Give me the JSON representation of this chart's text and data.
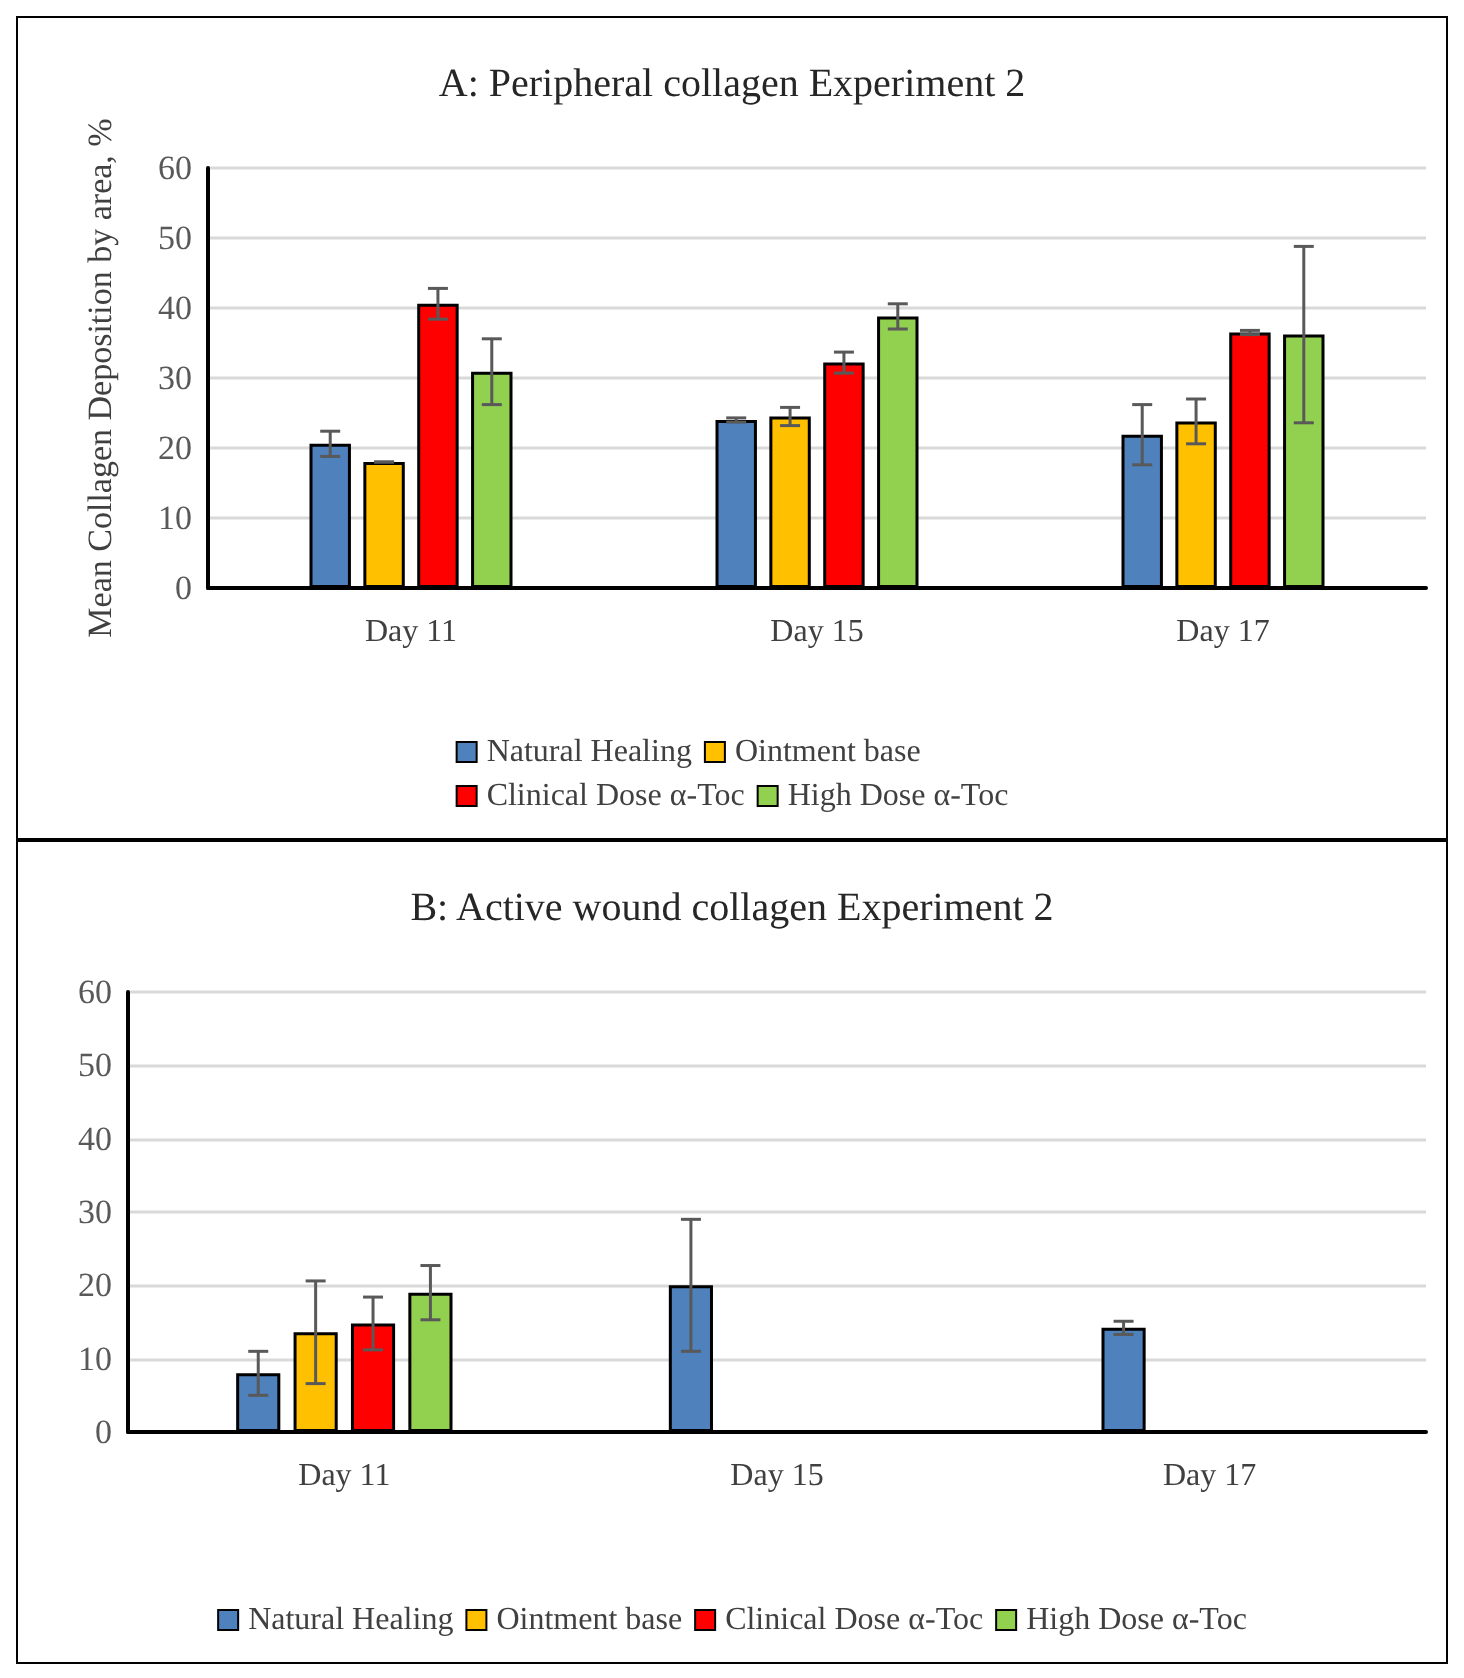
{
  "chart_data": [
    {
      "type": "bar",
      "title": "A: Peripheral collagen Experiment 2",
      "ylabel": "Mean Collagen Deposition by area, %",
      "categories": [
        "Day 11",
        "Day 15",
        "Day 17"
      ],
      "ylim": [
        0,
        60
      ],
      "yticks": [
        0,
        10,
        20,
        30,
        40,
        50,
        60
      ],
      "grid": "y",
      "legend": "bottom",
      "series": [
        {
          "name": "Natural Healing",
          "color": "#4f81bd",
          "values": [
            20.6,
            24,
            21.9
          ],
          "errors": [
            1.8,
            0.3,
            4.3
          ]
        },
        {
          "name": "Ointment base",
          "color": "#ffc000",
          "values": [
            18,
            24.5,
            23.8
          ],
          "errors": [
            0,
            1.3,
            3.2
          ]
        },
        {
          "name": "Clinical Dose α-Toc",
          "color": "#ff0000",
          "values": [
            40.6,
            32.2,
            36.5
          ],
          "errors": [
            2.2,
            1.5,
            0.3
          ]
        },
        {
          "name": "High Dose α-Toc",
          "color": "#92d050",
          "values": [
            30.9,
            38.8,
            36.2
          ],
          "errors": [
            4.7,
            1.8,
            12.6
          ]
        }
      ]
    },
    {
      "type": "bar",
      "title": "B: Active wound collagen Experiment 2",
      "categories": [
        "Day 11",
        "Day 15",
        "Day 17"
      ],
      "ylim": [
        0,
        60
      ],
      "yticks": [
        0,
        10,
        20,
        30,
        40,
        50,
        60
      ],
      "grid": "y",
      "legend": "bottom",
      "series": [
        {
          "name": "Natural Healing",
          "color": "#4f81bd",
          "values": [
            8,
            20,
            14.2
          ],
          "errors": [
            3,
            9,
            0.9
          ]
        },
        {
          "name": "Ointment base",
          "color": "#ffc000",
          "values": [
            13.6,
            null,
            null
          ],
          "errors": [
            7,
            null,
            null
          ]
        },
        {
          "name": "Clinical Dose α-Toc",
          "color": "#ff0000",
          "values": [
            14.8,
            null,
            null
          ],
          "errors": [
            3.6,
            null,
            null
          ]
        },
        {
          "name": "High Dose α-Toc",
          "color": "#92d050",
          "values": [
            19,
            null,
            null
          ],
          "errors": [
            3.7,
            null,
            null
          ]
        }
      ]
    }
  ]
}
